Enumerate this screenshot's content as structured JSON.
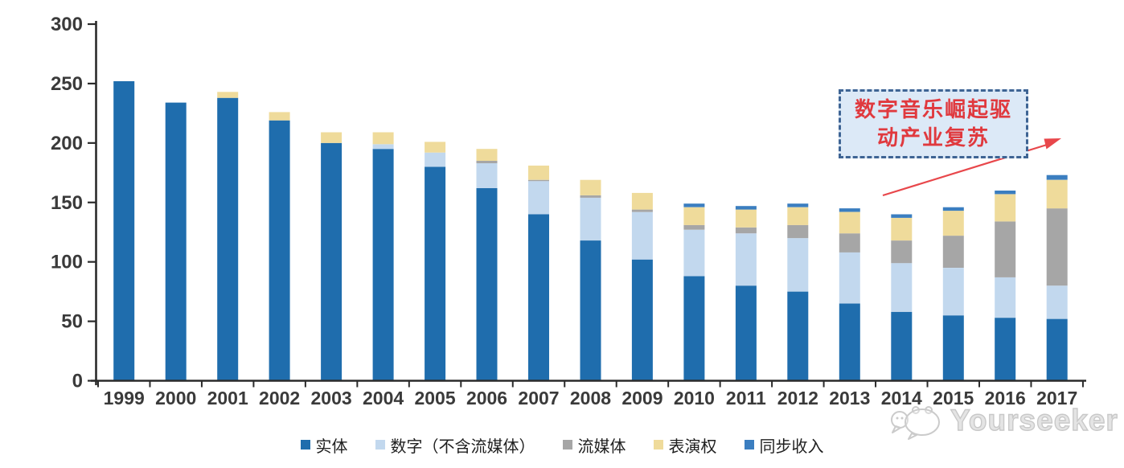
{
  "chart_data": {
    "type": "bar",
    "stacked": true,
    "title": "",
    "xlabel": "",
    "ylabel": "",
    "ylim": [
      0,
      300
    ],
    "yticks": [
      0,
      50,
      100,
      150,
      200,
      250,
      300
    ],
    "grid": false,
    "legend_position": "bottom",
    "categories": [
      "1999",
      "2000",
      "2001",
      "2002",
      "2003",
      "2004",
      "2005",
      "2006",
      "2007",
      "2008",
      "2009",
      "2010",
      "2011",
      "2012",
      "2013",
      "2014",
      "2015",
      "2016",
      "2017"
    ],
    "series": [
      {
        "name": "实体",
        "color": "#1f6dad",
        "values": [
          252,
          234,
          238,
          219,
          200,
          195,
          180,
          162,
          140,
          118,
          102,
          88,
          80,
          75,
          65,
          58,
          55,
          53,
          52
        ]
      },
      {
        "name": "数字（不含流媒体）",
        "color": "#c2d8ee",
        "values": [
          0,
          0,
          0,
          0,
          0,
          4,
          12,
          21,
          28,
          36,
          40,
          39,
          44,
          45,
          43,
          41,
          40,
          34,
          28
        ]
      },
      {
        "name": "流媒体",
        "color": "#a6a6a6",
        "values": [
          0,
          0,
          0,
          0,
          0,
          0,
          0,
          2,
          1,
          2,
          2,
          4,
          5,
          11,
          16,
          19,
          27,
          47,
          65
        ]
      },
      {
        "name": "表演权",
        "color": "#efdb9b",
        "values": [
          0,
          0,
          5,
          7,
          9,
          10,
          9,
          10,
          12,
          13,
          14,
          15,
          15,
          15,
          18,
          19,
          21,
          23,
          24
        ]
      },
      {
        "name": "同步收入",
        "color": "#3b7ec0",
        "values": [
          0,
          0,
          0,
          0,
          0,
          0,
          0,
          0,
          0,
          0,
          0,
          3,
          3,
          3,
          3,
          3,
          3,
          3,
          4
        ]
      }
    ]
  },
  "annotation": {
    "line1": "数字音乐崛起驱",
    "line2": "动产业复苏",
    "text_color": "#e0393e",
    "box_fill": "#dce9f7",
    "box_border": "#3e6494",
    "arrow_color": "#e8474b"
  },
  "watermark": {
    "text": "Yourseeker"
  },
  "axis": {
    "color": "#2b2b2b",
    "label_color": "#3a3a3a"
  }
}
